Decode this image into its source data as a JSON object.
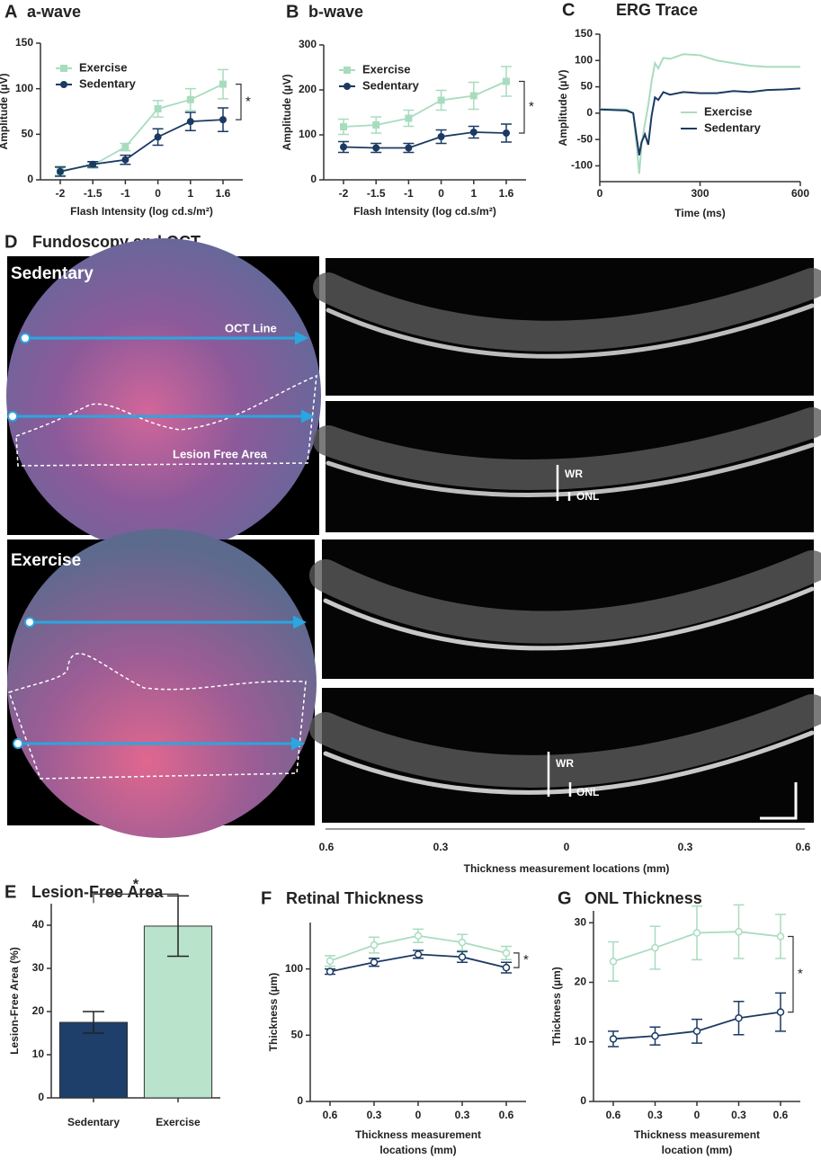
{
  "chart_data": [
    {
      "type": "line",
      "label": "A",
      "title": "a-wave",
      "ylabel": "Amplitude (µV)",
      "xlabel": "Flash Intensity (log cd.s/m²)",
      "categories": [
        "-2",
        "-1.5",
        "-1",
        "0",
        "1",
        "1.6"
      ],
      "ylim": [
        0,
        150
      ],
      "yticks": [
        0,
        50,
        100,
        150
      ],
      "legend": "upper left",
      "annotation": "*",
      "series": [
        {
          "name": "Exercise",
          "color": "#a8dcbf",
          "marker": "square",
          "values": [
            10,
            16,
            36,
            78,
            88,
            105
          ],
          "errors": [
            5,
            3,
            4,
            9,
            12,
            16
          ]
        },
        {
          "name": "Sedentary",
          "color": "#1b3a63",
          "marker": "circle",
          "values": [
            9,
            17,
            22,
            47,
            64,
            66
          ],
          "errors": [
            5,
            3,
            5,
            9,
            10,
            13
          ]
        }
      ]
    },
    {
      "type": "line",
      "label": "B",
      "title": "b-wave",
      "ylabel": "Amplitude (µV)",
      "xlabel": "Flash Intensity (log cd.s/m²)",
      "categories": [
        "-2",
        "-1.5",
        "-1",
        "0",
        "1",
        "1.6"
      ],
      "ylim": [
        0,
        300
      ],
      "yticks": [
        0,
        100,
        200,
        300
      ],
      "legend": "upper left",
      "annotation": "*",
      "series": [
        {
          "name": "Exercise",
          "color": "#a8dcbf",
          "marker": "square",
          "values": [
            118,
            122,
            137,
            177,
            187,
            219
          ],
          "errors": [
            17,
            18,
            18,
            22,
            30,
            33
          ]
        },
        {
          "name": "Sedentary",
          "color": "#1b3a63",
          "marker": "circle",
          "values": [
            73,
            71,
            71,
            96,
            106,
            104
          ],
          "errors": [
            12,
            10,
            10,
            15,
            13,
            20
          ]
        }
      ]
    },
    {
      "type": "line",
      "label": "C",
      "title": "ERG Trace",
      "ylabel": "Amplitude (µV)",
      "xlabel": "Time (ms)",
      "x": [
        0,
        80,
        100,
        110,
        118,
        125,
        135,
        145,
        155,
        165,
        175,
        190,
        210,
        250,
        300,
        350,
        400,
        450,
        500,
        550,
        600
      ],
      "xlim": [
        0,
        600
      ],
      "xticks": [
        0,
        300,
        600
      ],
      "ylim": [
        -130,
        150
      ],
      "yticks": [
        -100,
        -50,
        0,
        50,
        100,
        150
      ],
      "legend": "right",
      "series": [
        {
          "name": "Exercise",
          "color": "#a8dcbf",
          "values": [
            8,
            7,
            0,
            -60,
            -115,
            -60,
            -20,
            15,
            60,
            95,
            85,
            105,
            103,
            112,
            110,
            100,
            95,
            90,
            88,
            88,
            88
          ]
        },
        {
          "name": "Sedentary",
          "color": "#1b3a63",
          "values": [
            7,
            5,
            0,
            -45,
            -80,
            -55,
            -40,
            -60,
            -5,
            30,
            25,
            40,
            35,
            40,
            38,
            38,
            42,
            40,
            44,
            45,
            47
          ]
        }
      ]
    },
    {
      "type": "bar",
      "label": "E",
      "title": "Lesion-Free Area",
      "ylabel": "Lesion-Free Area (%)",
      "categories": [
        "Sedentary",
        "Exercise"
      ],
      "values": [
        17.5,
        39.8
      ],
      "errors": [
        2.5,
        7
      ],
      "colors": [
        "#1d3f6a",
        "#b9e3cb"
      ],
      "ylim": [
        0,
        45
      ],
      "yticks": [
        0,
        10,
        20,
        30,
        40
      ],
      "annotation": "*"
    },
    {
      "type": "line",
      "label": "F",
      "title": "Retinal Thickness",
      "ylabel": "Thickness (µm)",
      "xlabel": [
        "Thickness measurement",
        "locations (mm)"
      ],
      "categories": [
        "0.6",
        "0.3",
        "0",
        "0.3",
        "0.6"
      ],
      "ylim": [
        0,
        135
      ],
      "yticks": [
        0,
        50,
        100
      ],
      "annotation": "*",
      "series": [
        {
          "name": "Exercise",
          "color": "#a8dcbf",
          "marker": "open-circle",
          "values": [
            106,
            118,
            125,
            120,
            112
          ],
          "errors": [
            4,
            6,
            5,
            6,
            5
          ]
        },
        {
          "name": "Sedentary",
          "color": "#1b3a63",
          "marker": "open-circle",
          "values": [
            98,
            105,
            111,
            109,
            101
          ],
          "errors": [
            2,
            3,
            3,
            4,
            4
          ]
        }
      ]
    },
    {
      "type": "line",
      "label": "G",
      "title": "ONL Thickness",
      "ylabel": "Thickness (µm)",
      "xlabel": [
        "Thickness measurement",
        "location (mm)"
      ],
      "categories": [
        "0.6",
        "0.3",
        "0",
        "0.3",
        "0.6"
      ],
      "ylim": [
        0,
        32
      ],
      "yticks": [
        0,
        10,
        20,
        30
      ],
      "annotation": "*",
      "series": [
        {
          "name": "Exercise",
          "color": "#a8dcbf",
          "marker": "open-circle",
          "values": [
            23.5,
            25.8,
            28.3,
            28.5,
            27.7
          ],
          "errors": [
            3.3,
            3.6,
            4.5,
            4.5,
            3.7
          ]
        },
        {
          "name": "Sedentary",
          "color": "#1b3a63",
          "marker": "open-circle",
          "values": [
            10.5,
            11,
            11.8,
            14,
            15
          ],
          "errors": [
            1.3,
            1.5,
            2,
            2.8,
            3.2
          ]
        }
      ]
    }
  ],
  "panel_d": {
    "label": "D",
    "title": "Fundoscopy and OCT",
    "groups": [
      "Sedentary",
      "Exercise"
    ],
    "oct_line": "OCT Line",
    "lesion_free_area": "Lesion Free Area",
    "layer_labels": [
      "WR",
      "ONL"
    ],
    "axis": {
      "tick_labels": [
        "0.6",
        "0.3",
        "0",
        "0.3",
        "0.6"
      ],
      "label": "Thickness measurement locations (mm)"
    }
  }
}
